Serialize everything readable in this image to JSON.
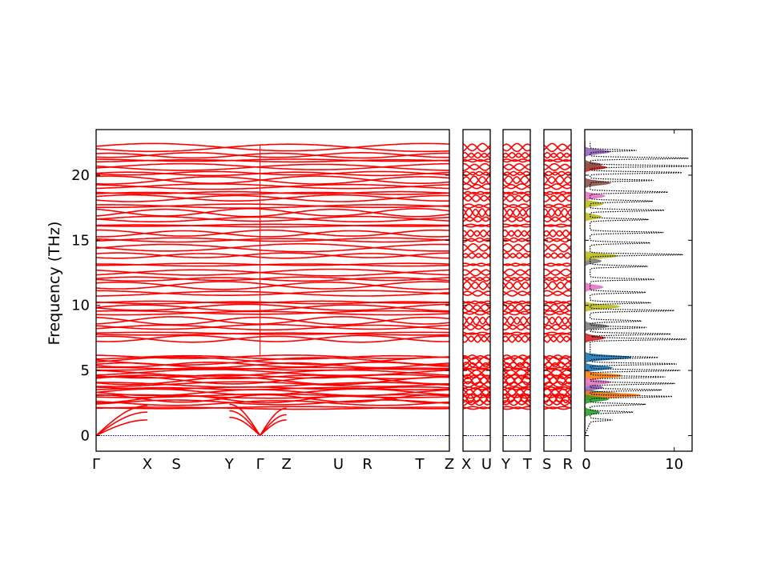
{
  "chart_data": {
    "type": "line",
    "ylabel": "Frequency (THz)",
    "ylim": [
      -1.2,
      23.5
    ],
    "grid": false,
    "line_color": "#ff0000",
    "zero_line_color": "#0000cc",
    "y_ticks": [
      {
        "value": 0,
        "label": "0"
      },
      {
        "value": 5,
        "label": "5"
      },
      {
        "value": 10,
        "label": "10"
      },
      {
        "value": 15,
        "label": "15"
      },
      {
        "value": 20,
        "label": "20"
      }
    ],
    "segments": [
      {
        "name": "main-path",
        "path_length": 100,
        "points": [
          {
            "pos": 0,
            "label": "Γ"
          },
          {
            "pos": 14.5,
            "label": "X"
          },
          {
            "pos": 22.7,
            "label": "S"
          },
          {
            "pos": 37.7,
            "label": "Y"
          },
          {
            "pos": 46.4,
            "label": "Γ"
          },
          {
            "pos": 53.9,
            "label": "Z"
          },
          {
            "pos": 68.6,
            "label": "U"
          },
          {
            "pos": 76.8,
            "label": "R"
          },
          {
            "pos": 91.6,
            "label": "T"
          },
          {
            "pos": 100,
            "label": "Z"
          }
        ]
      },
      {
        "name": "x-u",
        "path_length": 100,
        "points": [
          {
            "pos": 0,
            "label": "X"
          },
          {
            "pos": 100,
            "label": "U"
          }
        ]
      },
      {
        "name": "y-t",
        "path_length": 100,
        "points": [
          {
            "pos": 0,
            "label": "Y"
          },
          {
            "pos": 100,
            "label": "T"
          }
        ]
      },
      {
        "name": "s-r",
        "path_length": 100,
        "points": [
          {
            "pos": 0,
            "label": "S"
          },
          {
            "pos": 100,
            "label": "R"
          }
        ]
      }
    ],
    "acoustic_branches": [
      {
        "from": 0,
        "to": 14.5,
        "end_values": [
          1.2,
          1.8,
          2.3
        ]
      },
      {
        "from": 46.4,
        "to": 37.7,
        "end_values": [
          1.4,
          1.9,
          2.4
        ]
      },
      {
        "from": 46.4,
        "to": 53.9,
        "end_values": [
          1.2,
          1.6,
          2.1
        ]
      }
    ],
    "optical_bands_thz": [
      2.1,
      2.5,
      2.8,
      3.0,
      3.3,
      3.6,
      3.9,
      4.2,
      4.5,
      4.8,
      5.1,
      5.4,
      5.7,
      6.0,
      7.4,
      7.8,
      8.3,
      8.8,
      9.4,
      9.8,
      10.2,
      10.9,
      11.5,
      12.0,
      12.5,
      13.1,
      13.8,
      14.4,
      15.0,
      15.5,
      16.1,
      16.6,
      17.1,
      17.6,
      18.2,
      18.6,
      19.1,
      19.6,
      20.1,
      20.6,
      21.1,
      21.5,
      22.1
    ],
    "dos": {
      "xlim": [
        0,
        12
      ],
      "x_ticks": [
        {
          "value": 0,
          "label": "0"
        },
        {
          "value": 10,
          "label": "10"
        }
      ],
      "total_color": "#000000",
      "total_peaks": [
        {
          "f": 1.2,
          "v": 2.5
        },
        {
          "f": 1.8,
          "v": 4.8
        },
        {
          "f": 2.4,
          "v": 6.2
        },
        {
          "f": 3.0,
          "v": 9.2
        },
        {
          "f": 3.5,
          "v": 8.1
        },
        {
          "f": 4.0,
          "v": 9.6
        },
        {
          "f": 4.5,
          "v": 8.4
        },
        {
          "f": 5.0,
          "v": 10.2
        },
        {
          "f": 5.5,
          "v": 9.8
        },
        {
          "f": 6.0,
          "v": 7.6
        },
        {
          "f": 7.4,
          "v": 10.9
        },
        {
          "f": 7.8,
          "v": 9.0
        },
        {
          "f": 8.3,
          "v": 6.4
        },
        {
          "f": 8.8,
          "v": 5.8
        },
        {
          "f": 9.6,
          "v": 9.4
        },
        {
          "f": 10.2,
          "v": 6.8
        },
        {
          "f": 11.0,
          "v": 6.3
        },
        {
          "f": 12.0,
          "v": 7.2
        },
        {
          "f": 13.0,
          "v": 6.5
        },
        {
          "f": 13.9,
          "v": 10.5
        },
        {
          "f": 14.8,
          "v": 6.8
        },
        {
          "f": 15.6,
          "v": 8.2
        },
        {
          "f": 16.6,
          "v": 6.6
        },
        {
          "f": 17.3,
          "v": 8.4
        },
        {
          "f": 18.0,
          "v": 7.0
        },
        {
          "f": 18.7,
          "v": 8.8
        },
        {
          "f": 19.6,
          "v": 7.2
        },
        {
          "f": 20.2,
          "v": 10.4
        },
        {
          "f": 20.7,
          "v": 11.4
        },
        {
          "f": 21.3,
          "v": 11.0
        },
        {
          "f": 21.9,
          "v": 5.2
        }
      ],
      "partial_series": [
        {
          "color": "#1f77b4",
          "peaks": [
            {
              "f": 3.2,
              "v": 3.8
            },
            {
              "f": 5.2,
              "v": 3.0
            },
            {
              "f": 6.0,
              "v": 5.2
            }
          ]
        },
        {
          "color": "#ff7f0e",
          "peaks": [
            {
              "f": 3.1,
              "v": 6.2
            },
            {
              "f": 4.6,
              "v": 4.1
            }
          ]
        },
        {
          "color": "#2ca02c",
          "peaks": [
            {
              "f": 1.8,
              "v": 1.6
            },
            {
              "f": 2.8,
              "v": 2.6
            }
          ]
        },
        {
          "color": "#d62728",
          "peaks": [
            {
              "f": 7.5,
              "v": 2.2
            },
            {
              "f": 20.6,
              "v": 2.4
            }
          ]
        },
        {
          "color": "#9467bd",
          "peaks": [
            {
              "f": 3.7,
              "v": 2.0
            },
            {
              "f": 21.8,
              "v": 2.8
            }
          ]
        },
        {
          "color": "#8c564b",
          "peaks": [
            {
              "f": 19.4,
              "v": 2.8
            },
            {
              "f": 20.8,
              "v": 1.8
            }
          ]
        },
        {
          "color": "#e377c2",
          "peaks": [
            {
              "f": 4.1,
              "v": 2.8
            },
            {
              "f": 11.4,
              "v": 2.0
            },
            {
              "f": 18.4,
              "v": 2.2
            }
          ]
        },
        {
          "color": "#7f7f7f",
          "peaks": [
            {
              "f": 8.4,
              "v": 2.6
            },
            {
              "f": 13.4,
              "v": 1.8
            }
          ]
        },
        {
          "color": "#bcbd22",
          "peaks": [
            {
              "f": 9.9,
              "v": 3.8
            },
            {
              "f": 13.8,
              "v": 3.6
            },
            {
              "f": 16.8,
              "v": 1.8
            },
            {
              "f": 17.8,
              "v": 2.0
            }
          ]
        }
      ]
    }
  }
}
